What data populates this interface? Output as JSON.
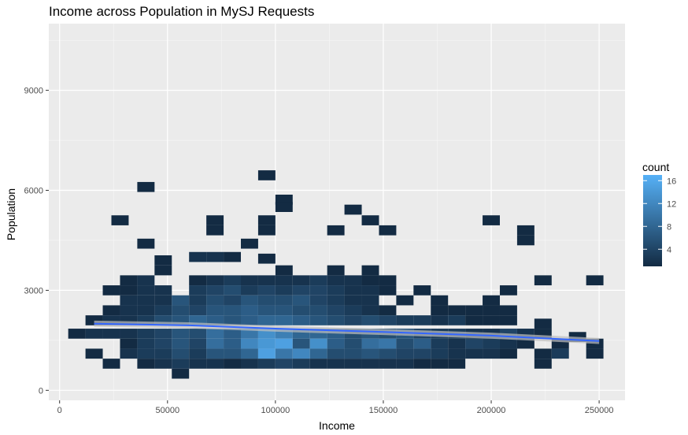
{
  "chart_data": {
    "type": "heatmap",
    "subtype": "2d-bin",
    "title": "Income across Population in MySJ Requests",
    "xlabel": "Income",
    "ylabel": "Population",
    "xlim": [
      -5000,
      262000
    ],
    "ylim": [
      -300,
      11000
    ],
    "x_ticks": [
      0,
      50000,
      100000,
      150000,
      200000,
      250000
    ],
    "y_ticks": [
      0,
      3000,
      6000,
      9000
    ],
    "grid": true,
    "bin_width": 8000,
    "bin_height": 300,
    "legend": {
      "title": "count",
      "position": "right",
      "ticks": [
        4,
        8,
        12,
        16
      ],
      "range": [
        1,
        17
      ],
      "low_color": "#132b43",
      "high_color": "#56b1f7"
    },
    "trend_line": {
      "type": "smooth",
      "color": "#3366ff",
      "points": [
        [
          16000,
          2000
        ],
        [
          60000,
          1950
        ],
        [
          100000,
          1850
        ],
        [
          150000,
          1750
        ],
        [
          200000,
          1640
        ],
        [
          250000,
          1480
        ]
      ]
    },
    "bins": [
      [
        40000,
        6100,
        1
      ],
      [
        96000,
        6450,
        1
      ],
      [
        104000,
        5720,
        1
      ],
      [
        104000,
        5500,
        1
      ],
      [
        136000,
        5420,
        1
      ],
      [
        144000,
        5100,
        1
      ],
      [
        152000,
        4800,
        1
      ],
      [
        200000,
        5100,
        1
      ],
      [
        216000,
        4800,
        1
      ],
      [
        216000,
        4500,
        1
      ],
      [
        28000,
        5100,
        1
      ],
      [
        72000,
        5100,
        1
      ],
      [
        72000,
        4800,
        1
      ],
      [
        96000,
        5100,
        1
      ],
      [
        96000,
        4800,
        1
      ],
      [
        128000,
        4800,
        1
      ],
      [
        40000,
        4400,
        1
      ],
      [
        88000,
        4400,
        1
      ],
      [
        48000,
        3900,
        1
      ],
      [
        48000,
        3600,
        1
      ],
      [
        64000,
        4000,
        2
      ],
      [
        72000,
        4000,
        2
      ],
      [
        80000,
        4000,
        1
      ],
      [
        96000,
        3950,
        1
      ],
      [
        104000,
        3600,
        1
      ],
      [
        128000,
        3600,
        1
      ],
      [
        144000,
        3600,
        1
      ],
      [
        224000,
        3300,
        1
      ],
      [
        248000,
        3300,
        1
      ],
      [
        208000,
        3000,
        1
      ],
      [
        32000,
        3300,
        1
      ],
      [
        40000,
        3300,
        2
      ],
      [
        64000,
        3300,
        1
      ],
      [
        72000,
        3300,
        2
      ],
      [
        80000,
        3300,
        3
      ],
      [
        88000,
        3300,
        2
      ],
      [
        96000,
        3300,
        2
      ],
      [
        104000,
        3300,
        2
      ],
      [
        112000,
        3300,
        2
      ],
      [
        120000,
        3300,
        3
      ],
      [
        128000,
        3300,
        2
      ],
      [
        136000,
        3300,
        2
      ],
      [
        144000,
        3300,
        1
      ],
      [
        152000,
        3300,
        1
      ],
      [
        32000,
        3000,
        1
      ],
      [
        40000,
        3000,
        2
      ],
      [
        48000,
        3000,
        2
      ],
      [
        64000,
        3000,
        3
      ],
      [
        72000,
        3000,
        4
      ],
      [
        80000,
        3000,
        5
      ],
      [
        88000,
        3000,
        3
      ],
      [
        96000,
        3000,
        4
      ],
      [
        104000,
        3000,
        3
      ],
      [
        112000,
        3000,
        4
      ],
      [
        120000,
        3000,
        4
      ],
      [
        128000,
        3000,
        3
      ],
      [
        136000,
        3000,
        2
      ],
      [
        144000,
        3000,
        2
      ],
      [
        152000,
        3000,
        1
      ],
      [
        24000,
        3000,
        1
      ],
      [
        168000,
        3000,
        1
      ],
      [
        32000,
        2700,
        2
      ],
      [
        40000,
        2700,
        2
      ],
      [
        48000,
        2700,
        2
      ],
      [
        56000,
        2700,
        6
      ],
      [
        64000,
        2700,
        3
      ],
      [
        72000,
        2700,
        5
      ],
      [
        80000,
        2700,
        4
      ],
      [
        88000,
        2700,
        6
      ],
      [
        96000,
        2700,
        5
      ],
      [
        104000,
        2700,
        5
      ],
      [
        112000,
        2700,
        6
      ],
      [
        120000,
        2700,
        4
      ],
      [
        128000,
        2700,
        3
      ],
      [
        136000,
        2700,
        2
      ],
      [
        144000,
        2700,
        2
      ],
      [
        160000,
        2700,
        1
      ],
      [
        176000,
        2700,
        1
      ],
      [
        200000,
        2700,
        1
      ],
      [
        24000,
        2400,
        1
      ],
      [
        32000,
        2400,
        2
      ],
      [
        40000,
        2400,
        2
      ],
      [
        48000,
        2400,
        3
      ],
      [
        56000,
        2400,
        5
      ],
      [
        64000,
        2400,
        4
      ],
      [
        72000,
        2400,
        6
      ],
      [
        80000,
        2400,
        6
      ],
      [
        88000,
        2400,
        7
      ],
      [
        96000,
        2400,
        6
      ],
      [
        104000,
        2400,
        6
      ],
      [
        112000,
        2400,
        5
      ],
      [
        120000,
        2400,
        5
      ],
      [
        128000,
        2400,
        4
      ],
      [
        136000,
        2400,
        3
      ],
      [
        144000,
        2400,
        2
      ],
      [
        152000,
        2400,
        1
      ],
      [
        176000,
        2400,
        1
      ],
      [
        184000,
        2400,
        1
      ],
      [
        192000,
        2400,
        1
      ],
      [
        200000,
        2400,
        1
      ],
      [
        208000,
        2400,
        1
      ],
      [
        16000,
        2100,
        1
      ],
      [
        24000,
        2100,
        2
      ],
      [
        32000,
        2100,
        2
      ],
      [
        40000,
        2100,
        3
      ],
      [
        48000,
        2100,
        5
      ],
      [
        56000,
        2100,
        6
      ],
      [
        64000,
        2100,
        8
      ],
      [
        72000,
        2100,
        7
      ],
      [
        80000,
        2100,
        6
      ],
      [
        88000,
        2100,
        7
      ],
      [
        96000,
        2100,
        8
      ],
      [
        104000,
        2100,
        8
      ],
      [
        112000,
        2100,
        7
      ],
      [
        120000,
        2100,
        6
      ],
      [
        128000,
        2100,
        5
      ],
      [
        136000,
        2100,
        4
      ],
      [
        144000,
        2100,
        5
      ],
      [
        152000,
        2100,
        4
      ],
      [
        160000,
        2100,
        3
      ],
      [
        168000,
        2100,
        3
      ],
      [
        176000,
        2100,
        2
      ],
      [
        184000,
        2100,
        3
      ],
      [
        192000,
        2100,
        1
      ],
      [
        200000,
        2100,
        1
      ],
      [
        208000,
        2100,
        1
      ],
      [
        224000,
        2000,
        1
      ],
      [
        8000,
        1700,
        1
      ],
      [
        16000,
        1700,
        2
      ],
      [
        24000,
        1700,
        2
      ],
      [
        32000,
        1700,
        2
      ],
      [
        40000,
        1700,
        3
      ],
      [
        48000,
        1700,
        4
      ],
      [
        56000,
        1700,
        6
      ],
      [
        64000,
        1700,
        5
      ],
      [
        72000,
        1700,
        9
      ],
      [
        80000,
        1700,
        7
      ],
      [
        88000,
        1700,
        10
      ],
      [
        96000,
        1700,
        13
      ],
      [
        104000,
        1700,
        11
      ],
      [
        112000,
        1700,
        8
      ],
      [
        120000,
        1700,
        8
      ],
      [
        128000,
        1700,
        7
      ],
      [
        136000,
        1700,
        5
      ],
      [
        144000,
        1700,
        6
      ],
      [
        152000,
        1700,
        5
      ],
      [
        160000,
        1700,
        6
      ],
      [
        168000,
        1700,
        4
      ],
      [
        176000,
        1700,
        3
      ],
      [
        184000,
        1700,
        3
      ],
      [
        192000,
        1700,
        2
      ],
      [
        200000,
        1700,
        2
      ],
      [
        208000,
        1700,
        4
      ],
      [
        216000,
        1700,
        2
      ],
      [
        224000,
        1700,
        1
      ],
      [
        240000,
        1600,
        1
      ],
      [
        32000,
        1400,
        1
      ],
      [
        40000,
        1400,
        3
      ],
      [
        48000,
        1400,
        4
      ],
      [
        56000,
        1400,
        6
      ],
      [
        64000,
        1400,
        4
      ],
      [
        72000,
        1400,
        9
      ],
      [
        80000,
        1400,
        7
      ],
      [
        88000,
        1400,
        12
      ],
      [
        96000,
        1400,
        14
      ],
      [
        104000,
        1400,
        15
      ],
      [
        112000,
        1400,
        6
      ],
      [
        120000,
        1400,
        13
      ],
      [
        128000,
        1400,
        7
      ],
      [
        136000,
        1400,
        5
      ],
      [
        144000,
        1400,
        9
      ],
      [
        152000,
        1400,
        10
      ],
      [
        160000,
        1400,
        5
      ],
      [
        168000,
        1400,
        7
      ],
      [
        176000,
        1400,
        3
      ],
      [
        184000,
        1400,
        2
      ],
      [
        192000,
        1400,
        4
      ],
      [
        200000,
        1400,
        3
      ],
      [
        208000,
        1400,
        2
      ],
      [
        216000,
        1400,
        1
      ],
      [
        232000,
        1400,
        1
      ],
      [
        248000,
        1400,
        1
      ],
      [
        16000,
        1100,
        1
      ],
      [
        32000,
        1100,
        2
      ],
      [
        40000,
        1100,
        3
      ],
      [
        48000,
        1100,
        3
      ],
      [
        56000,
        1100,
        5
      ],
      [
        64000,
        1100,
        3
      ],
      [
        72000,
        1100,
        6
      ],
      [
        80000,
        1100,
        6
      ],
      [
        88000,
        1100,
        8
      ],
      [
        96000,
        1100,
        15
      ],
      [
        104000,
        1100,
        10
      ],
      [
        112000,
        1100,
        12
      ],
      [
        120000,
        1100,
        8
      ],
      [
        128000,
        1100,
        5
      ],
      [
        136000,
        1100,
        5
      ],
      [
        144000,
        1100,
        6
      ],
      [
        152000,
        1100,
        5
      ],
      [
        160000,
        1100,
        4
      ],
      [
        168000,
        1100,
        4
      ],
      [
        176000,
        1100,
        3
      ],
      [
        184000,
        1100,
        2
      ],
      [
        192000,
        1100,
        2
      ],
      [
        200000,
        1100,
        2
      ],
      [
        208000,
        1100,
        1
      ],
      [
        224000,
        1100,
        1
      ],
      [
        232000,
        1100,
        3
      ],
      [
        248000,
        1100,
        1
      ],
      [
        24000,
        800,
        1
      ],
      [
        40000,
        800,
        1
      ],
      [
        48000,
        800,
        2
      ],
      [
        56000,
        800,
        3
      ],
      [
        64000,
        800,
        2
      ],
      [
        72000,
        800,
        2
      ],
      [
        80000,
        800,
        1
      ],
      [
        88000,
        800,
        2
      ],
      [
        96000,
        800,
        3
      ],
      [
        104000,
        800,
        4
      ],
      [
        112000,
        800,
        3
      ],
      [
        120000,
        800,
        2
      ],
      [
        128000,
        800,
        2
      ],
      [
        136000,
        800,
        2
      ],
      [
        144000,
        800,
        2
      ],
      [
        152000,
        800,
        2
      ],
      [
        160000,
        800,
        2
      ],
      [
        168000,
        800,
        1
      ],
      [
        176000,
        800,
        1
      ],
      [
        184000,
        800,
        1
      ],
      [
        224000,
        800,
        1
      ],
      [
        56000,
        500,
        1
      ]
    ]
  }
}
